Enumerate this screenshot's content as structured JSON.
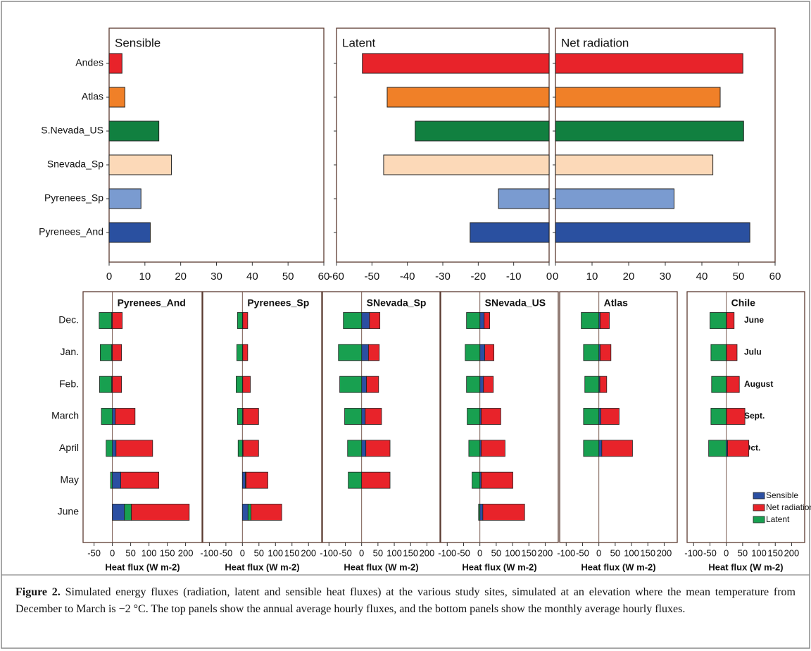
{
  "chart_data": [
    {
      "type": "bar",
      "orientation": "horizontal",
      "title": "Sensible",
      "categories": [
        "Andes",
        "Atlas",
        "S.Nevada_US",
        "Snevada_Sp",
        "Pyrenees_Sp",
        "Pyrenees_And"
      ],
      "values": [
        3.6,
        4.4,
        13.9,
        17.4,
        8.9,
        11.5
      ],
      "colors": [
        "#e8232a",
        "#f08028",
        "#118040",
        "#fcd9b8",
        "#7a9bd0",
        "#2a50a0"
      ],
      "xlim": [
        0,
        60
      ],
      "xticks": [
        0,
        10,
        20,
        30,
        40,
        50,
        60
      ]
    },
    {
      "type": "bar",
      "orientation": "horizontal",
      "title": "Latent",
      "values": [
        -52.7,
        -45.7,
        -37.8,
        -46.7,
        -14.3,
        -22.3
      ],
      "colors": [
        "#e8232a",
        "#f08028",
        "#118040",
        "#fcd9b8",
        "#7a9bd0",
        "#2a50a0"
      ],
      "xlim": [
        -60,
        0
      ],
      "xticks": [
        -60,
        -50,
        -40,
        -30,
        -20,
        -10,
        0
      ]
    },
    {
      "type": "bar",
      "orientation": "horizontal",
      "title": "Net radiation",
      "values": [
        51.2,
        45,
        51.4,
        43,
        32.4,
        53.1
      ],
      "colors": [
        "#e8232a",
        "#f08028",
        "#118040",
        "#fcd9b8",
        "#7a9bd0",
        "#2a50a0"
      ],
      "xlim": [
        0,
        60
      ],
      "xticks": [
        0,
        10,
        20,
        30,
        40,
        50,
        60
      ]
    },
    {
      "type": "stacked-bar",
      "orientation": "horizontal",
      "title": "Pyrenees_And",
      "categories": [
        "Dec.",
        "Jan.",
        "Feb.",
        "March",
        "April",
        "May",
        "June"
      ],
      "series": [
        {
          "color": "#2b4fa2",
          "values": [
            -2,
            -2,
            -2,
            8,
            10,
            23,
            33
          ]
        },
        {
          "color": "#e8232a",
          "values": [
            27,
            25,
            25,
            54,
            100,
            104,
            158
          ]
        },
        {
          "color": "#18a050",
          "values": [
            -34,
            -31,
            -33,
            -30,
            -17,
            -5,
            19
          ]
        }
      ],
      "xlim": [
        -80,
        245
      ],
      "xticks": [
        -50,
        0,
        50,
        100,
        150,
        200
      ],
      "xlabel": "Heat flux (W m-2)"
    },
    {
      "type": "stacked-bar",
      "orientation": "horizontal",
      "title": "Pyrenees_Sp",
      "series": [
        {
          "color": "#2b4fa2",
          "values": [
            1,
            1,
            1,
            2,
            2,
            9,
            17
          ]
        },
        {
          "color": "#e8232a",
          "values": [
            15,
            15,
            23,
            47,
            47,
            66,
            93
          ]
        },
        {
          "color": "#18a050",
          "values": [
            -15,
            -17,
            -19,
            -15,
            -13,
            2,
            9
          ]
        }
      ],
      "xlim": [
        -120,
        240
      ],
      "xticks": [
        -100,
        -50,
        0,
        50,
        100,
        150,
        200
      ],
      "xlabel": "Heat flux (W m-2)"
    },
    {
      "type": "stacked-bar",
      "orientation": "horizontal",
      "title": "SNevada_Sp",
      "series": [
        {
          "color": "#2b4fa2",
          "values": [
            24,
            21,
            15,
            11,
            13,
            0,
            null
          ]
        },
        {
          "color": "#e8232a",
          "values": [
            32,
            33,
            37,
            50,
            74,
            87,
            null
          ]
        },
        {
          "color": "#18a050",
          "values": [
            -56,
            -71,
            -67,
            -52,
            -43,
            -41,
            null
          ]
        }
      ],
      "xlim": [
        -120,
        240
      ],
      "xticks": [
        -100,
        -50,
        0,
        50,
        100,
        150,
        200
      ],
      "xlabel": "Heat flux (W m-2)"
    },
    {
      "type": "stacked-bar",
      "orientation": "horizontal",
      "title": "SNevada_US",
      "series": [
        {
          "color": "#2b4fa2",
          "values": [
            13,
            15,
            11,
            4,
            4,
            4,
            9
          ]
        },
        {
          "color": "#e8232a",
          "values": [
            17,
            28,
            30,
            60,
            73,
            97,
            128
          ]
        },
        {
          "color": "#18a050",
          "values": [
            -41,
            -45,
            -41,
            -39,
            -34,
            -24,
            -4
          ]
        }
      ],
      "xlim": [
        -120,
        240
      ],
      "xticks": [
        -100,
        -50,
        0,
        50,
        100,
        150,
        200
      ],
      "xlabel": "Heat flux (W m-2)"
    },
    {
      "type": "stacked-bar",
      "orientation": "horizontal",
      "title": "Atlas",
      "series": [
        {
          "color": "#2b4fa2",
          "values": [
            4,
            4,
            3,
            6,
            9,
            null,
            null
          ]
        },
        {
          "color": "#e8232a",
          "values": [
            28,
            33,
            21,
            56,
            94,
            null,
            null
          ]
        },
        {
          "color": "#18a050",
          "values": [
            -54,
            -47,
            -43,
            -47,
            -47,
            null,
            null
          ]
        }
      ],
      "xlim": [
        -120,
        240
      ],
      "xticks": [
        -100,
        -50,
        0,
        50,
        100,
        150,
        200
      ],
      "xlabel": "Heat flux (W m-2)"
    },
    {
      "type": "stacked-bar",
      "orientation": "horizontal",
      "title": "Chile",
      "categories": [
        "June",
        "Julu",
        "August",
        "Sept.",
        "Oct."
      ],
      "series": [
        {
          "name": "Sensible",
          "color": "#2b4fa2",
          "values": [
            1,
            1,
            1,
            1,
            4
          ]
        },
        {
          "name": "Net radiation",
          "color": "#e8232a",
          "values": [
            23,
            32,
            39,
            56,
            65
          ]
        },
        {
          "name": "Latent",
          "color": "#18a050",
          "values": [
            -50,
            -47,
            -45,
            -47,
            -54
          ]
        }
      ],
      "xlim": [
        -120,
        240
      ],
      "xticks": [
        -100,
        -50,
        0,
        50,
        100,
        150,
        200
      ],
      "xlabel": "Heat flux (W m-2)",
      "legend": "lower right"
    }
  ],
  "caption": {
    "label": "Figure 2.",
    "text": "Simulated energy fluxes (radiation, latent and sensible heat fluxes) at the various study sites, simulated at an elevation where the mean temperature from December to March is −2 °C. The top panels show the annual average hourly fluxes, and the bottom panels show the monthly average hourly fluxes."
  }
}
